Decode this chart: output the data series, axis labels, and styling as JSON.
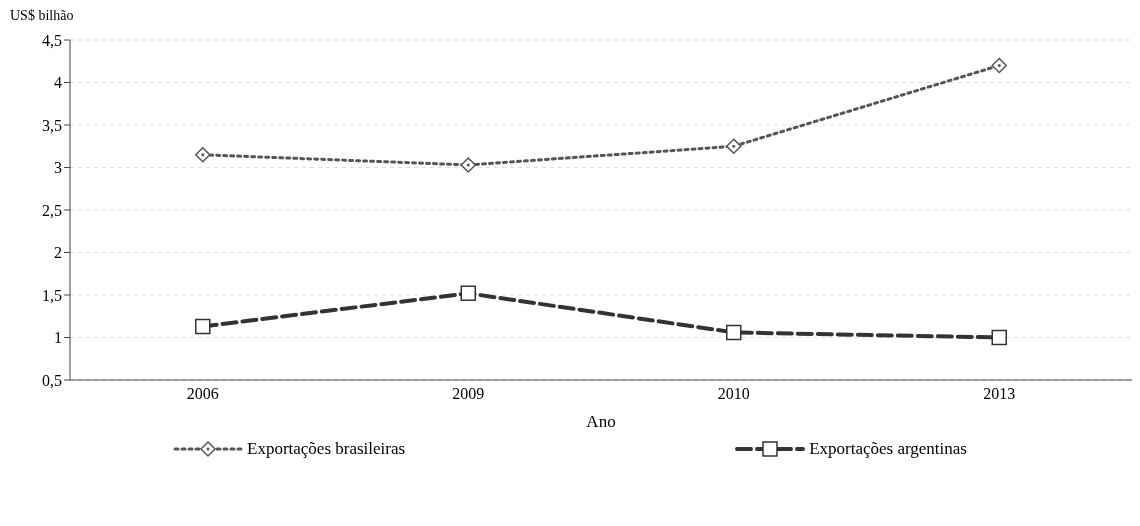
{
  "chart_data": {
    "type": "line",
    "ylabel": "US$ bilhão",
    "xlabel": "Ano",
    "categories": [
      "2006",
      "2009",
      "2010",
      "2013"
    ],
    "series": [
      {
        "name": "Exportações brasileiras",
        "color": "#555555",
        "values": [
          3.15,
          3.03,
          3.25,
          4.2
        ],
        "marker": "diamond",
        "line_style": "dotted"
      },
      {
        "name": "Exportações argentinas",
        "color": "#333333",
        "values": [
          1.13,
          1.52,
          1.06,
          1.0
        ],
        "marker": "square",
        "line_style": "dashed"
      }
    ],
    "ylim": [
      0.5,
      4.5
    ],
    "yticks": [
      {
        "value": 0.5,
        "label": "0,5"
      },
      1,
      {
        "value": 1.5,
        "label": "1,5"
      },
      2,
      {
        "value": 2.5,
        "label": "2,5"
      },
      3,
      {
        "value": 3.5,
        "label": "3,5"
      },
      4,
      {
        "value": 4.5,
        "label": "4,5"
      }
    ],
    "grid": "y",
    "legend": "bottom"
  }
}
